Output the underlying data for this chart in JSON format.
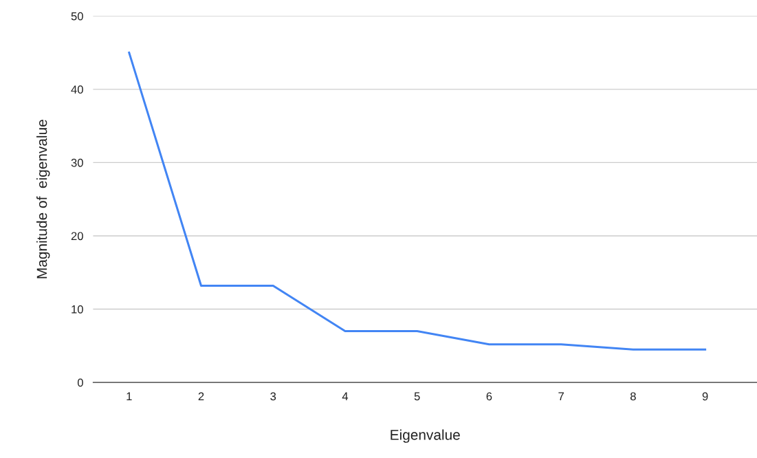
{
  "chart_data": {
    "type": "line",
    "xlabel": "Eigenvalue",
    "ylabel": "Magnitude of  eigenvalue",
    "categories": [
      "1",
      "2",
      "3",
      "4",
      "5",
      "6",
      "7",
      "8",
      "9"
    ],
    "series": [
      {
        "color": "#4285f4",
        "values": [
          45,
          13.2,
          13.2,
          7.0,
          7.0,
          5.2,
          5.2,
          4.5,
          4.5
        ]
      }
    ],
    "ylim": [
      0,
      50
    ],
    "yticks": [
      0,
      10,
      20,
      30,
      40,
      50
    ],
    "grid": "y",
    "marker": "none",
    "line_style": "solid"
  }
}
